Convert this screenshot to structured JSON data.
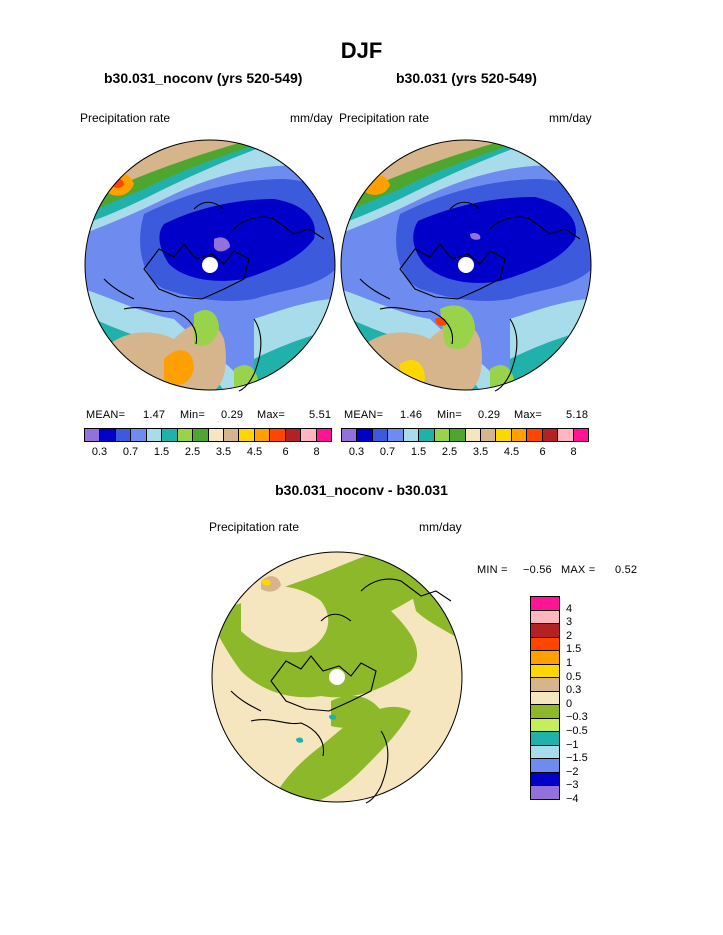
{
  "page": {
    "title": "DJF"
  },
  "panels": [
    {
      "subtitle": "b30.031_noconv (yrs 520-549)",
      "left_label": "Precipitation rate",
      "right_label": "mm/day",
      "stats": {
        "mean_label": "MEAN=",
        "mean": "1.47",
        "min_label": "Min=",
        "min": "0.29",
        "max_label": "Max=",
        "max": "5.51"
      }
    },
    {
      "subtitle": "b30.031 (yrs 520-549)",
      "left_label": "Precipitation rate",
      "right_label": "mm/day",
      "stats": {
        "mean_label": "MEAN=",
        "mean": "1.46",
        "min_label": "Min=",
        "min": "0.29",
        "max_label": "Max=",
        "max": "5.18"
      }
    }
  ],
  "difference": {
    "subtitle": "b30.031_noconv - b30.031",
    "left_label": "Precipitation rate",
    "right_label": "mm/day",
    "min_label": "MIN =",
    "min": "−0.56",
    "max_label": "MAX =",
    "max": "0.52"
  },
  "colorbar_top": {
    "colors": [
      "#9370db",
      "#0000c8",
      "#3c5adc",
      "#6e8cf0",
      "#a8dcea",
      "#20b2aa",
      "#99d34a",
      "#4fa62e",
      "#f5e6c0",
      "#d6b48c",
      "#ffd700",
      "#ff9f00",
      "#ff4500",
      "#b22222",
      "#ffb6c1",
      "#ff1493"
    ],
    "ticks": [
      "0.3",
      "0.7",
      "1.5",
      "2.5",
      "3.5",
      "4.5",
      "6",
      "8"
    ]
  },
  "colorbar_diff": {
    "colors": [
      "#ff1493",
      "#ffb6c1",
      "#b22222",
      "#ff4500",
      "#ff9f00",
      "#ffd700",
      "#d6b48c",
      "#f5e6c0",
      "#8db82a",
      "#c5ee5a",
      "#20b2aa",
      "#a8dcea",
      "#6e8cf0",
      "#0000c8",
      "#9370db"
    ],
    "ticks": [
      "4",
      "3",
      "2",
      "1.5",
      "1",
      "0.5",
      "0.3",
      "0",
      "−0.3",
      "−0.5",
      "−1",
      "−1.5",
      "−2",
      "−3",
      "−4"
    ]
  }
}
